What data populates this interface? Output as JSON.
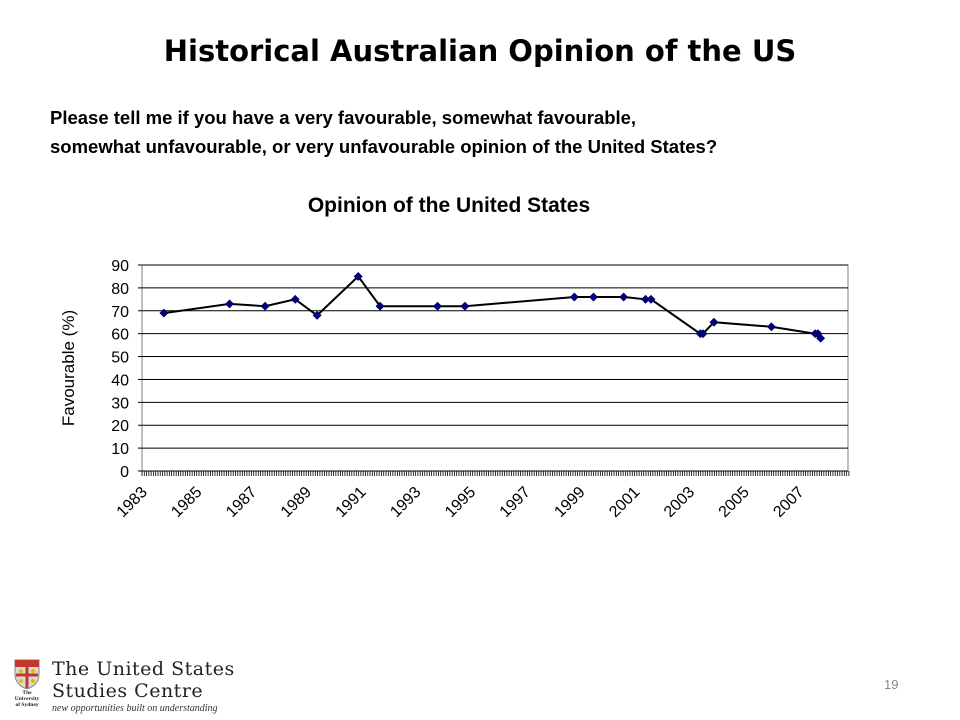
{
  "slide": {
    "title": "Historical Australian Opinion of the US",
    "question_line1": "Please tell me if you have a very favourable, somewhat favourable,",
    "question_line2": "somewhat unfavourable, or very unfavourable opinion of the United States?",
    "page_number": "19"
  },
  "footer": {
    "logo_line1": "The United States",
    "logo_line2": "Studies Centre",
    "tagline": "new opportunities built on understanding",
    "university_line1": "The",
    "university_line2": "University",
    "university_line3": "of Sydney"
  },
  "chart_data": {
    "type": "line",
    "title": "Opinion of the United States",
    "xlabel": "",
    "ylabel": "Favourable (%)",
    "ylim": [
      0,
      90
    ],
    "yticks": [
      0,
      10,
      20,
      30,
      40,
      50,
      60,
      70,
      80,
      90
    ],
    "xlim": [
      1983,
      2008.8
    ],
    "xticks": [
      "1983",
      "1985",
      "1987",
      "1989",
      "1991",
      "1993",
      "1995",
      "1997",
      "1999",
      "2001",
      "2003",
      "2005",
      "2007"
    ],
    "grid": true,
    "legend": "none",
    "marker_color": "#000080",
    "line_color": "#000000",
    "x": [
      1983.8,
      1986.2,
      1987.5,
      1988.6,
      1989.4,
      1990.9,
      1991.7,
      1993.8,
      1994.8,
      1998.8,
      1999.5,
      2000.6,
      2001.4,
      2001.6,
      2003.4,
      2003.5,
      2003.9,
      2006.0,
      2007.6,
      2007.7,
      2007.8
    ],
    "y": [
      69,
      73,
      72,
      75,
      68,
      85,
      72,
      72,
      72,
      76,
      76,
      76,
      75,
      75,
      60,
      60,
      65,
      63,
      60,
      60,
      58
    ]
  }
}
